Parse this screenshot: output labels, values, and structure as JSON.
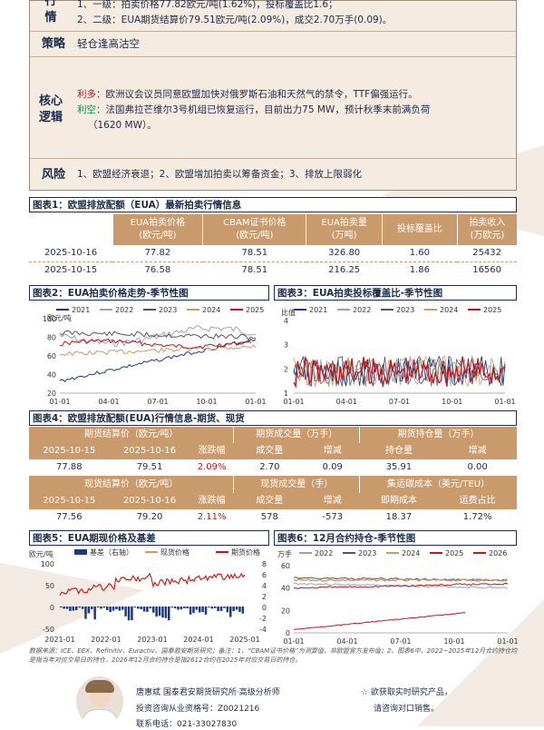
{
  "summary": {
    "rows": [
      {
        "label": "行情",
        "lines": [
          "1、一级：拍卖价格77.82欧元/吨(1.62%)，投标覆盖比1.6；",
          "2、二级：EUA期货结算价79.51欧元/吨(2.09%)，成交2.70万手(0.09)。"
        ]
      },
      {
        "label": "策略",
        "lines": [
          "轻仓逢高沽空"
        ]
      },
      {
        "label": "核心逻辑",
        "bull_tag": "利多：",
        "bull": "欧洲议会议员同意欧盟加快对俄罗斯石油和天然气的禁令，TTF偏强运行。",
        "bear_tag": "利空：",
        "bear": "法国弗拉芒维尔3号机组已恢复运行，目前出力75 MW，预计秋季末前满负荷",
        "bear2": "（1620 MW）。"
      },
      {
        "label": "风险",
        "lines": [
          "1、欧盟经济衰退；2、欧盟增加拍卖以筹备资金；3、排放上限弱化"
        ]
      }
    ]
  },
  "t1": {
    "title": "图表1：欧盟排放配额（EUA）最新拍卖行情信息",
    "headers": [
      "",
      "EUA拍卖价格（欧元/吨）",
      "CBAM证书价格（欧元/吨）",
      "EUA拍卖量（万吨）",
      "投标覆盖比",
      "拍卖收入（万欧元）"
    ],
    "h1": [
      "EUA拍卖价格",
      "CBAM证书价格",
      "EUA拍卖量",
      "投标覆盖比",
      "拍卖收入"
    ],
    "h2": [
      "(欧元/吨)",
      "(欧元/吨)",
      "(万吨)",
      "",
      "(万欧元)"
    ],
    "rows": [
      [
        "2025-10-16",
        "77.82",
        "78.51",
        "326.80",
        "1.60",
        "25432"
      ],
      [
        "2025-10-15",
        "76.58",
        "78.51",
        "216.25",
        "1.86",
        "16560"
      ]
    ]
  },
  "c2": {
    "title": "图表2：EUA拍卖价格走势-季节性图",
    "unit": "欧元/吨",
    "legend": [
      "2021",
      "2022",
      "2023",
      "2024",
      "2025"
    ],
    "yticks": [
      "100",
      "80",
      "60",
      "40",
      "20"
    ],
    "xticks": [
      "01-01",
      "04-01",
      "07-01",
      "10-01",
      "01-01"
    ]
  },
  "c3": {
    "title": "图表3：EUA拍卖投标覆盖比-季节性图",
    "unit": "比值",
    "legend": [
      "2021",
      "2022",
      "2023",
      "2024",
      "2025"
    ],
    "yticks": [
      "4",
      "3",
      "2",
      "1"
    ],
    "xticks": [
      "01-01",
      "04-01",
      "07-01",
      "10-01",
      "01-01"
    ]
  },
  "t4": {
    "title": "图表4：欧盟排放配额(EUA)行情信息-期货、现货",
    "fut_h": [
      "期货结算价（欧元/吨）",
      "期货成交量（万手）",
      "期货持仓量（万手）"
    ],
    "fut_sub": [
      "2025-10-15",
      "2025-10-16",
      "涨跌幅",
      "成交量",
      "增减",
      "持仓量",
      "增减"
    ],
    "fut_row": [
      "77.88",
      "79.51",
      "2.09%",
      "2.70",
      "0.09",
      "35.91",
      "0.00"
    ],
    "spot_h": [
      "现货结算价（欧元/吨）",
      "现货成交量（手）",
      "集运碳成本（美元/TEU）"
    ],
    "spot_sub": [
      "2025-10-15",
      "2025-10-16",
      "涨跌幅",
      "成交量",
      "增减",
      "即期成本",
      "运费占比"
    ],
    "spot_row": [
      "77.56",
      "79.20",
      "2.11%",
      "578",
      "-573",
      "18.37",
      "1.72%"
    ]
  },
  "c5": {
    "title": "图表5：EUA期现价格及基差",
    "unit": "欧元/吨",
    "legend": [
      "基差（右轴）",
      "现货价格",
      "期货价格"
    ],
    "yleft": [
      "100",
      "50",
      "0",
      "-50"
    ],
    "yright": [
      "8",
      "6",
      "4",
      "2",
      "0",
      "-2",
      "-4"
    ],
    "xticks": [
      "2021-01",
      "2022-01",
      "2023-01",
      "2024-01",
      "2025-01"
    ]
  },
  "c6": {
    "title": "图表6：12月合约持仓-季节性图",
    "unit": "万手",
    "legend": [
      "2022",
      "2023",
      "2024",
      "2025",
      "2026"
    ],
    "yticks": [
      "60",
      "40",
      "20",
      "0"
    ],
    "xticks": [
      "01-01",
      "04-01",
      "07-01",
      "10-01",
      "01-01"
    ]
  },
  "footer": {
    "note": "数据来源：ICE、EEX、Refinitiv、Euractiv、国泰君安期货研究；备注：1、“CBAM证书价格”为测算值，非欧盟官方发布值；2、图表6中，2022~2025年12月合约持仓均是指当年对应交易日的持仓，2026年12月合约持仓是指2612合约在2025年对应交易日的持仓。",
    "analyst": "唐惠斌  国泰君安期货研究所·高级分析师",
    "cert": "投资咨询从业资格号：Z0021216",
    "phone": "联系电话：021-33027830",
    "right1": "☆ 欲获取实时研究产品，",
    "right2": "请咨询对口销售。"
  },
  "colors": {
    "c2021": "#1f3a7a",
    "c2022": "#9aa3b5",
    "c2023": "#555555",
    "c2024": "#c99a6b",
    "c2025": "#c0171f",
    "c2026": "#c0171f"
  }
}
